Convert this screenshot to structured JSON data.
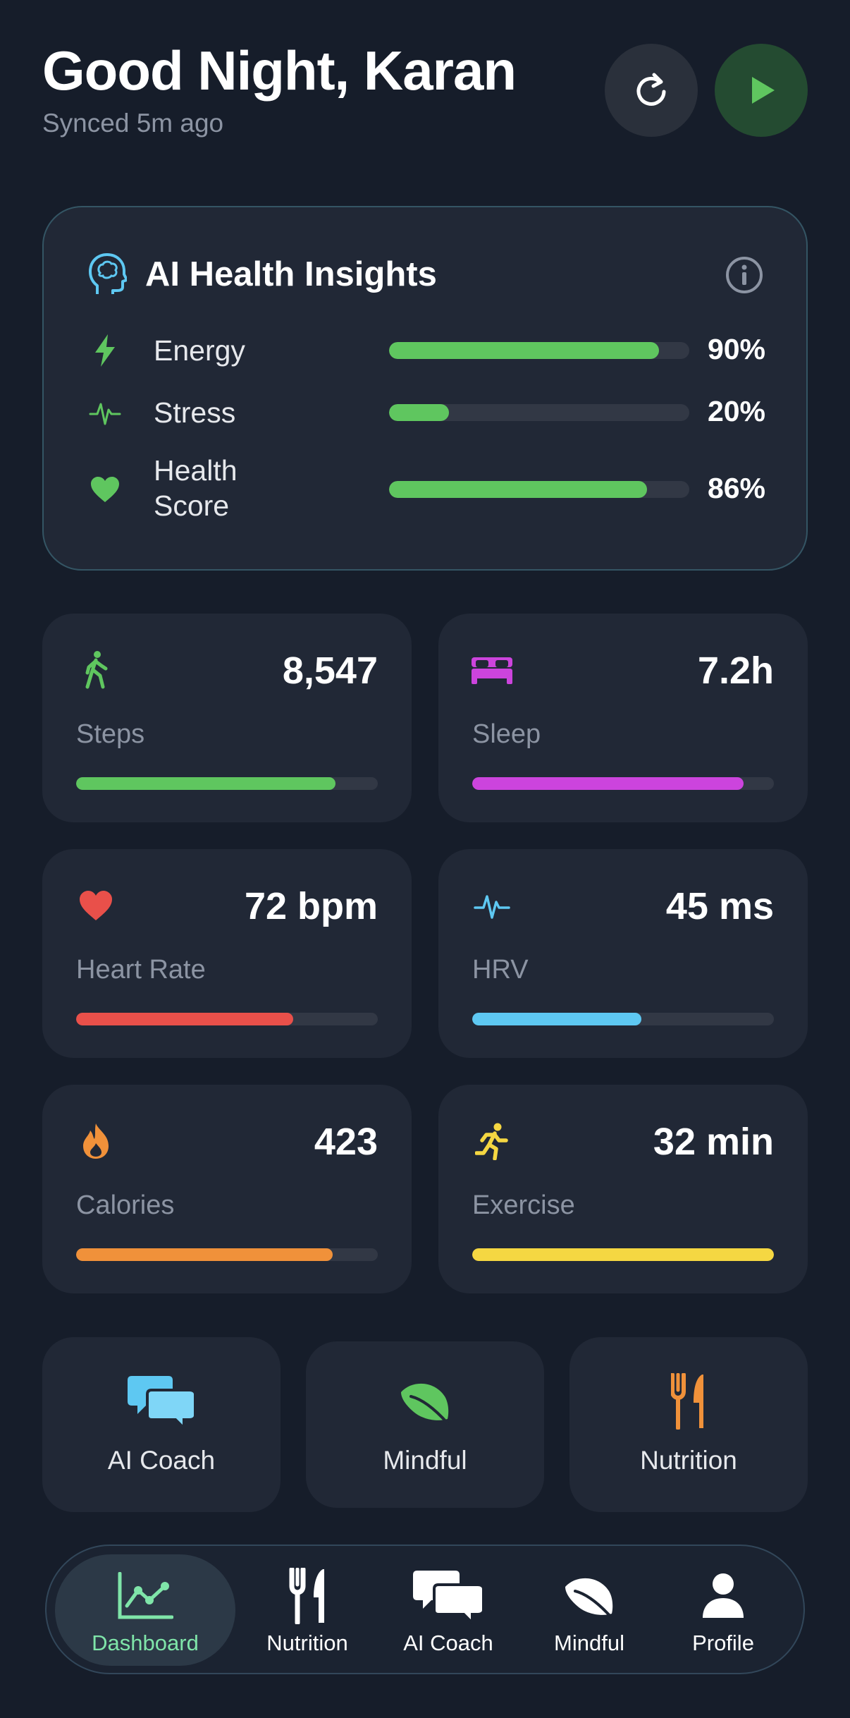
{
  "header": {
    "greeting": "Good Night, Karan",
    "synced": "Synced 5m ago",
    "refresh_icon": "refresh-icon",
    "play_icon": "play-icon"
  },
  "insights": {
    "title": "AI Health Insights",
    "icon": "brain-head-icon",
    "info_icon": "info-icon",
    "metrics": [
      {
        "label": "Energy",
        "value": "90%",
        "level": 0.9,
        "color": "#5fc65f",
        "icon": "lightning-icon"
      },
      {
        "label": "Stress",
        "value": "20%",
        "level": 0.2,
        "color": "#5fc65f",
        "icon": "pulse-icon"
      },
      {
        "label": "Health\nScore",
        "value": "86%",
        "level": 0.86,
        "color": "#5fc65f",
        "icon": "heart-icon"
      }
    ]
  },
  "stats": [
    {
      "label": "Steps",
      "value": "8,547",
      "level": 0.86,
      "color": "#5fc65f",
      "icon": "walking-icon"
    },
    {
      "label": "Sleep",
      "value": "7.2h",
      "level": 0.9,
      "color": "#cc44dd",
      "icon": "bed-icon"
    },
    {
      "label": "Heart Rate",
      "value": "72 bpm",
      "level": 0.72,
      "color": "#e9504a",
      "icon": "heart-icon"
    },
    {
      "label": "HRV",
      "value": "45 ms",
      "level": 0.56,
      "color": "#5ec8f2",
      "icon": "pulse-icon"
    },
    {
      "label": "Calories",
      "value": "423",
      "level": 0.85,
      "color": "#f0913a",
      "icon": "flame-icon"
    },
    {
      "label": "Exercise",
      "value": "32 min",
      "level": 1.0,
      "color": "#f5d742",
      "icon": "running-icon"
    }
  ],
  "quick_actions": [
    {
      "label": "AI Coach",
      "icon": "chat-bubbles-icon"
    },
    {
      "label": "Mindful",
      "icon": "leaf-icon"
    },
    {
      "label": "Nutrition",
      "icon": "fork-knife-icon"
    }
  ],
  "tabs": [
    {
      "label": "Dashboard",
      "icon": "chart-line-icon",
      "active": true
    },
    {
      "label": "Nutrition",
      "icon": "fork-knife-icon",
      "active": false
    },
    {
      "label": "AI Coach",
      "icon": "chat-bubbles-icon",
      "active": false
    },
    {
      "label": "Mindful",
      "icon": "leaf-icon",
      "active": false
    },
    {
      "label": "Profile",
      "icon": "person-icon",
      "active": false
    }
  ],
  "colors": {
    "background": "#161d2a",
    "card": "#212836",
    "accent_green": "#5fc65f",
    "active_tab_text": "#7fe5a9"
  }
}
